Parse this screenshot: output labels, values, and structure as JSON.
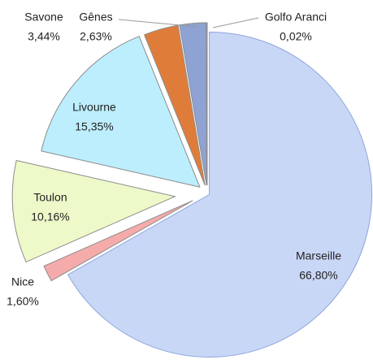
{
  "chart_data": {
    "type": "pie",
    "categories": [
      "Marseille",
      "Nice",
      "Toulon",
      "Livourne",
      "Savone",
      "Gênes",
      "Golfo Aranci"
    ],
    "values": [
      66.8,
      1.6,
      10.16,
      15.35,
      3.44,
      2.63,
      0.02
    ],
    "value_labels": [
      "66,80%",
      "1,60%",
      "10,16%",
      "15,35%",
      "3,44%",
      "2,63%",
      "0,02%"
    ],
    "colors": [
      "#c9d7f7",
      "#f6abab",
      "#eef9c9",
      "#bdeefd",
      "#e07c3a",
      "#8ea2d3",
      "#6b8fd6"
    ]
  }
}
